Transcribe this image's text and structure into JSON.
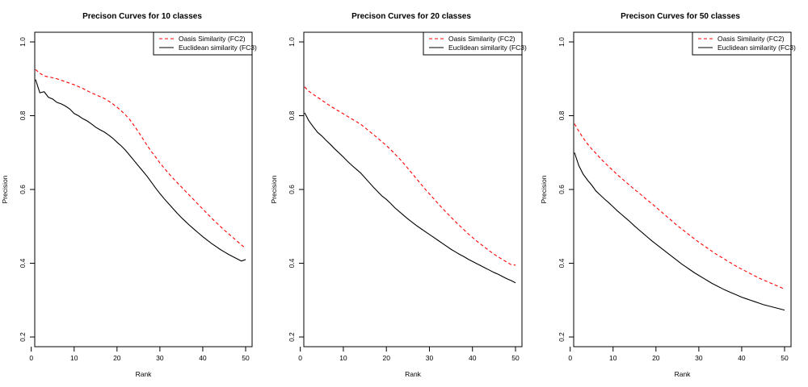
{
  "chart_data": [
    {
      "type": "line",
      "title": "Precison Curves for 10 classes",
      "xlabel": "Rank",
      "ylabel": "Precision",
      "xlim": [
        1,
        50
      ],
      "ylim": [
        0.2,
        1.0
      ],
      "x_ticks": [
        0,
        10,
        20,
        30,
        40,
        50
      ],
      "y_ticks": [
        0.2,
        0.4,
        0.6,
        0.8,
        1.0
      ],
      "x_tick_labels": [
        "0",
        "10",
        "20",
        "30",
        "40",
        "50"
      ],
      "y_tick_labels": [
        "0.2",
        "0.4",
        "0.6",
        "0.8",
        "1.0"
      ],
      "grid": false,
      "legend_position": "top-right",
      "series": [
        {
          "name": "Oasis Similarity (FC2)",
          "color": "#ff0000",
          "dash": "dashed",
          "x": [
            1,
            2,
            3,
            4,
            5,
            6,
            7,
            8,
            9,
            10,
            11,
            12,
            13,
            14,
            15,
            16,
            17,
            18,
            19,
            20,
            21,
            22,
            23,
            24,
            25,
            26,
            27,
            28,
            29,
            30,
            31,
            32,
            33,
            34,
            35,
            36,
            37,
            38,
            39,
            40,
            41,
            42,
            43,
            44,
            45,
            46,
            47,
            48,
            49,
            50
          ],
          "values": [
            0.925,
            0.915,
            0.908,
            0.905,
            0.903,
            0.9,
            0.896,
            0.892,
            0.888,
            0.884,
            0.879,
            0.874,
            0.868,
            0.862,
            0.857,
            0.852,
            0.847,
            0.84,
            0.832,
            0.823,
            0.813,
            0.802,
            0.789,
            0.773,
            0.756,
            0.738,
            0.72,
            0.703,
            0.688,
            0.672,
            0.658,
            0.644,
            0.631,
            0.619,
            0.607,
            0.595,
            0.583,
            0.571,
            0.559,
            0.547,
            0.535,
            0.523,
            0.512,
            0.501,
            0.49,
            0.48,
            0.47,
            0.46,
            0.45,
            0.44
          ]
        },
        {
          "name": "Euclidean similarity (FC3)",
          "color": "#000000",
          "dash": "solid",
          "x": [
            1,
            2,
            3,
            4,
            5,
            6,
            7,
            8,
            9,
            10,
            11,
            12,
            13,
            14,
            15,
            16,
            17,
            18,
            19,
            20,
            21,
            22,
            23,
            24,
            25,
            26,
            27,
            28,
            29,
            30,
            31,
            32,
            33,
            34,
            35,
            36,
            37,
            38,
            39,
            40,
            41,
            42,
            43,
            44,
            45,
            46,
            47,
            48,
            49,
            50
          ],
          "values": [
            0.898,
            0.862,
            0.865,
            0.85,
            0.845,
            0.836,
            0.832,
            0.826,
            0.818,
            0.806,
            0.8,
            0.792,
            0.786,
            0.778,
            0.769,
            0.762,
            0.756,
            0.748,
            0.739,
            0.728,
            0.718,
            0.706,
            0.692,
            0.678,
            0.664,
            0.65,
            0.636,
            0.62,
            0.604,
            0.589,
            0.575,
            0.562,
            0.549,
            0.536,
            0.524,
            0.513,
            0.502,
            0.492,
            0.482,
            0.472,
            0.463,
            0.454,
            0.446,
            0.438,
            0.431,
            0.424,
            0.418,
            0.412,
            0.406,
            0.41
          ]
        }
      ]
    },
    {
      "type": "line",
      "title": "Precison Curves for 20 classes",
      "xlabel": "Rank",
      "ylabel": "Precision",
      "xlim": [
        1,
        50
      ],
      "ylim": [
        0.2,
        1.0
      ],
      "x_ticks": [
        0,
        10,
        20,
        30,
        40,
        50
      ],
      "y_ticks": [
        0.2,
        0.4,
        0.6,
        0.8,
        1.0
      ],
      "x_tick_labels": [
        "0",
        "10",
        "20",
        "30",
        "40",
        "50"
      ],
      "y_tick_labels": [
        "0.2",
        "0.4",
        "0.6",
        "0.8",
        "1.0"
      ],
      "grid": false,
      "legend_position": "top-right",
      "series": [
        {
          "name": "Oasis Similarity (FC2)",
          "color": "#ff0000",
          "dash": "dashed",
          "x": [
            1,
            2,
            3,
            4,
            5,
            6,
            7,
            8,
            9,
            10,
            11,
            12,
            13,
            14,
            15,
            16,
            17,
            18,
            19,
            20,
            21,
            22,
            23,
            24,
            25,
            26,
            27,
            28,
            29,
            30,
            31,
            32,
            33,
            34,
            35,
            36,
            37,
            38,
            39,
            40,
            41,
            42,
            43,
            44,
            45,
            46,
            47,
            48,
            49,
            50
          ],
          "values": [
            0.878,
            0.866,
            0.858,
            0.85,
            0.842,
            0.834,
            0.826,
            0.819,
            0.812,
            0.805,
            0.798,
            0.791,
            0.784,
            0.777,
            0.768,
            0.758,
            0.749,
            0.739,
            0.729,
            0.719,
            0.708,
            0.696,
            0.684,
            0.671,
            0.657,
            0.643,
            0.629,
            0.615,
            0.601,
            0.588,
            0.575,
            0.562,
            0.549,
            0.537,
            0.525,
            0.513,
            0.502,
            0.491,
            0.48,
            0.47,
            0.46,
            0.451,
            0.442,
            0.433,
            0.425,
            0.417,
            0.41,
            0.403,
            0.396,
            0.395
          ]
        },
        {
          "name": "Euclidean similarity (FC3)",
          "color": "#000000",
          "dash": "solid",
          "x": [
            1,
            2,
            3,
            4,
            5,
            6,
            7,
            8,
            9,
            10,
            11,
            12,
            13,
            14,
            15,
            16,
            17,
            18,
            19,
            20,
            21,
            22,
            23,
            24,
            25,
            26,
            27,
            28,
            29,
            30,
            31,
            32,
            33,
            34,
            35,
            36,
            37,
            38,
            39,
            40,
            41,
            42,
            43,
            44,
            45,
            46,
            47,
            48,
            49,
            50
          ],
          "values": [
            0.808,
            0.786,
            0.77,
            0.755,
            0.745,
            0.733,
            0.722,
            0.71,
            0.699,
            0.688,
            0.676,
            0.665,
            0.655,
            0.645,
            0.632,
            0.619,
            0.606,
            0.594,
            0.582,
            0.573,
            0.562,
            0.55,
            0.54,
            0.53,
            0.52,
            0.511,
            0.502,
            0.494,
            0.486,
            0.478,
            0.47,
            0.462,
            0.454,
            0.446,
            0.438,
            0.431,
            0.424,
            0.418,
            0.411,
            0.405,
            0.399,
            0.393,
            0.387,
            0.381,
            0.375,
            0.37,
            0.364,
            0.358,
            0.353,
            0.347
          ]
        }
      ]
    },
    {
      "type": "line",
      "title": "Precison Curves for 50 classes",
      "xlabel": "Rank",
      "ylabel": "Precision",
      "xlim": [
        1,
        50
      ],
      "ylim": [
        0.2,
        1.0
      ],
      "x_ticks": [
        0,
        10,
        20,
        30,
        40,
        50
      ],
      "y_ticks": [
        0.2,
        0.4,
        0.6,
        0.8,
        1.0
      ],
      "x_tick_labels": [
        "0",
        "10",
        "20",
        "30",
        "40",
        "50"
      ],
      "y_tick_labels": [
        "0.2",
        "0.4",
        "0.6",
        "0.8",
        "1.0"
      ],
      "grid": false,
      "legend_position": "top-right",
      "series": [
        {
          "name": "Oasis Similarity (FC2)",
          "color": "#ff0000",
          "dash": "dashed",
          "x": [
            1,
            2,
            3,
            4,
            5,
            6,
            7,
            8,
            9,
            10,
            11,
            12,
            13,
            14,
            15,
            16,
            17,
            18,
            19,
            20,
            21,
            22,
            23,
            24,
            25,
            26,
            27,
            28,
            29,
            30,
            31,
            32,
            33,
            34,
            35,
            36,
            37,
            38,
            39,
            40,
            41,
            42,
            43,
            44,
            45,
            46,
            47,
            48,
            49,
            50
          ],
          "values": [
            0.778,
            0.758,
            0.74,
            0.724,
            0.71,
            0.698,
            0.685,
            0.673,
            0.662,
            0.651,
            0.64,
            0.63,
            0.62,
            0.61,
            0.6,
            0.591,
            0.581,
            0.571,
            0.562,
            0.552,
            0.542,
            0.532,
            0.522,
            0.512,
            0.502,
            0.493,
            0.484,
            0.475,
            0.466,
            0.457,
            0.449,
            0.441,
            0.433,
            0.425,
            0.418,
            0.411,
            0.404,
            0.397,
            0.39,
            0.384,
            0.378,
            0.372,
            0.366,
            0.36,
            0.355,
            0.35,
            0.345,
            0.34,
            0.335,
            0.33
          ]
        },
        {
          "name": "Euclidean similarity (FC3)",
          "color": "#000000",
          "dash": "solid",
          "x": [
            1,
            2,
            3,
            4,
            5,
            6,
            7,
            8,
            9,
            10,
            11,
            12,
            13,
            14,
            15,
            16,
            17,
            18,
            19,
            20,
            21,
            22,
            23,
            24,
            25,
            26,
            27,
            28,
            29,
            30,
            31,
            32,
            33,
            34,
            35,
            36,
            37,
            38,
            39,
            40,
            41,
            42,
            43,
            44,
            45,
            46,
            47,
            48,
            49,
            50
          ],
          "values": [
            0.7,
            0.665,
            0.642,
            0.626,
            0.612,
            0.596,
            0.585,
            0.574,
            0.564,
            0.553,
            0.542,
            0.532,
            0.522,
            0.512,
            0.501,
            0.491,
            0.481,
            0.471,
            0.461,
            0.452,
            0.443,
            0.434,
            0.425,
            0.416,
            0.407,
            0.398,
            0.39,
            0.382,
            0.374,
            0.367,
            0.36,
            0.353,
            0.346,
            0.34,
            0.334,
            0.328,
            0.323,
            0.318,
            0.313,
            0.308,
            0.304,
            0.3,
            0.296,
            0.292,
            0.288,
            0.285,
            0.282,
            0.279,
            0.276,
            0.273
          ]
        }
      ]
    }
  ]
}
